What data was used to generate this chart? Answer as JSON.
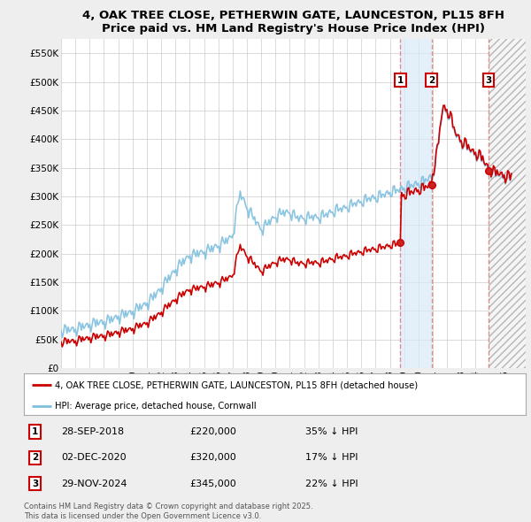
{
  "title": "4, OAK TREE CLOSE, PETHERWIN GATE, LAUNCESTON, PL15 8FH",
  "subtitle": "Price paid vs. HM Land Registry's House Price Index (HPI)",
  "ylim": [
    0,
    575000
  ],
  "yticks": [
    0,
    50000,
    100000,
    150000,
    200000,
    250000,
    300000,
    350000,
    400000,
    450000,
    500000,
    550000
  ],
  "ytick_labels": [
    "£0",
    "£50K",
    "£100K",
    "£150K",
    "£200K",
    "£250K",
    "£300K",
    "£350K",
    "£400K",
    "£450K",
    "£500K",
    "£550K"
  ],
  "xlim_start": 1995.0,
  "xlim_end": 2027.5,
  "background_color": "#eeeeee",
  "plot_bg_color": "#ffffff",
  "grid_color": "#cccccc",
  "hpi_line_color": "#7fbfdf",
  "price_line_color": "#cc0000",
  "vline_color": "#e08080",
  "shade_color": "#d8eaf8",
  "shade_alpha": 0.7,
  "sales": [
    {
      "date": 2018.74,
      "price": 220000,
      "label": "1"
    },
    {
      "date": 2020.92,
      "price": 320000,
      "label": "2"
    },
    {
      "date": 2024.91,
      "price": 345000,
      "label": "3"
    }
  ],
  "sale_annotations": [
    {
      "label": "1",
      "date": "28-SEP-2018",
      "price": "£220,000",
      "note": "35% ↓ HPI"
    },
    {
      "label": "2",
      "date": "02-DEC-2020",
      "price": "£320,000",
      "note": "17% ↓ HPI"
    },
    {
      "label": "3",
      "date": "29-NOV-2024",
      "price": "£345,000",
      "note": "22% ↓ HPI"
    }
  ],
  "footer": "Contains HM Land Registry data © Crown copyright and database right 2025.\nThis data is licensed under the Open Government Licence v3.0.",
  "legend_line1": "4, OAK TREE CLOSE, PETHERWIN GATE, LAUNCESTON, PL15 8FH (detached house)",
  "legend_line2": "HPI: Average price, detached house, Cornwall",
  "hatch_start": 2024.91,
  "hatch_end": 2027.5,
  "shade_start": 2018.74,
  "shade_end": 2020.92
}
